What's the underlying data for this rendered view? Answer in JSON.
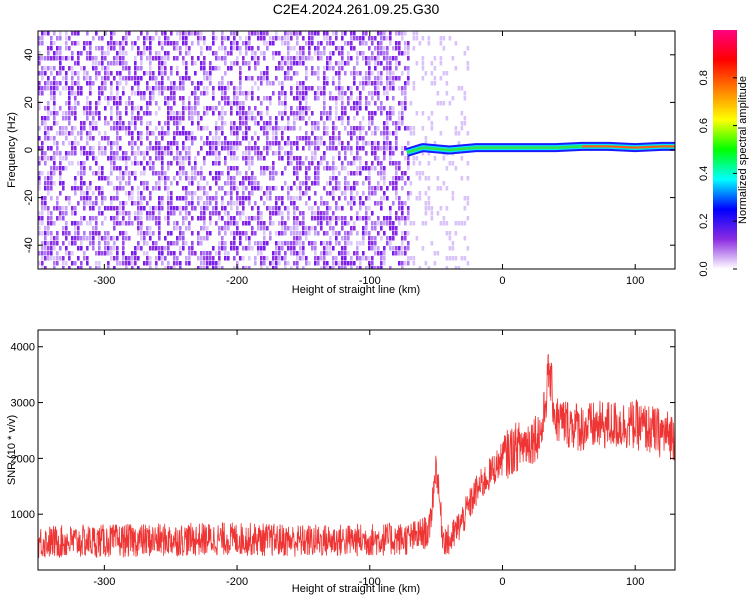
{
  "title": "C2E4.2024.261.09.25.G30",
  "chart_data": [
    {
      "type": "heatmap",
      "xlabel": "Height of straight line (km)",
      "ylabel": "Frequency (Hz)",
      "xlim": [
        -350,
        130
      ],
      "ylim": [
        -50,
        50
      ],
      "xticks": [
        -300,
        -200,
        -100,
        0,
        100
      ],
      "yticks": [
        -40,
        -20,
        0,
        20,
        40
      ],
      "grid": false,
      "colorbar": {
        "label": "Normalized spectral amplitude",
        "range": [
          0,
          1
        ],
        "ticks": [
          0.0,
          0.2,
          0.4,
          0.6,
          0.8
        ],
        "colormap": [
          "#ffffff",
          "#8a2be2",
          "#0000ff",
          "#00ffff",
          "#00ff00",
          "#ffff00",
          "#ff7f00",
          "#ff0000",
          "#ff0080"
        ]
      },
      "noise_region_end_km": -70,
      "signal_line": {
        "x": [
          -72,
          -60,
          -40,
          -20,
          0,
          20,
          40,
          60,
          80,
          100,
          120,
          130
        ],
        "frequency": [
          -1,
          1,
          0,
          1,
          1,
          1,
          1,
          1.5,
          1.5,
          1,
          1.5,
          1.5
        ],
        "amplitude": [
          0.3,
          0.35,
          0.35,
          0.4,
          0.5,
          0.5,
          0.6,
          0.75,
          0.8,
          0.7,
          0.8,
          0.8
        ]
      }
    },
    {
      "type": "line",
      "xlabel": "Height of straight line (km)",
      "ylabel": "SNR (10 * v/v)",
      "xlim": [
        -350,
        130
      ],
      "ylim": [
        0,
        4300
      ],
      "xticks": [
        -300,
        -200,
        -100,
        0,
        100
      ],
      "yticks": [
        1000,
        2000,
        3000,
        4000
      ],
      "grid": false,
      "line_color": "#ef3434",
      "series": [
        {
          "x": [
            -350,
            -300,
            -250,
            -200,
            -150,
            -100,
            -70,
            -55,
            -50,
            -45,
            -40,
            -30,
            -20,
            -10,
            0,
            10,
            20,
            30,
            35,
            40,
            60,
            80,
            100,
            120,
            130
          ],
          "values": [
            500,
            520,
            540,
            560,
            520,
            540,
            560,
            700,
            1900,
            600,
            500,
            900,
            1400,
            1700,
            2000,
            2200,
            2300,
            2500,
            3600,
            2700,
            2550,
            2600,
            2600,
            2450,
            2400
          ]
        }
      ]
    }
  ]
}
